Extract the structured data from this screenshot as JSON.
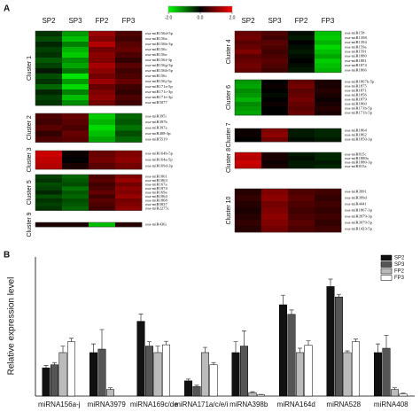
{
  "chart_data": [
    {
      "type": "heatmap",
      "panel": "A",
      "columns": [
        "SP2",
        "SP3",
        "FP2",
        "FP3"
      ],
      "clim": [
        -2,
        2
      ],
      "cticks": [
        {
          "value": -2,
          "label": "-2.0"
        },
        {
          "value": 0,
          "label": "0.0"
        },
        {
          "value": 2,
          "label": "2.0"
        }
      ],
      "clusters": [
        {
          "name": "Cluster 1",
          "rows": [
            "osa-miR156d-5p",
            "osa-miR156a",
            "osa-miR156b-3p",
            "osa-miR156c",
            "osa-miR156e",
            "osa-miR156f-3p",
            "osa-miR156g-3p",
            "osa-miR156h-5p",
            "osa-miR156i",
            "osa-miR156j-5p",
            "osa-miR171a-5p",
            "osa-miR171c-3p",
            "osa-miR171e-3p",
            "osa-miR5077"
          ],
          "values": [
            [
              -0.4,
              -1.2,
              1.2,
              0.6
            ],
            [
              -0.6,
              -1.5,
              1.0,
              0.5
            ],
            [
              -0.3,
              -1.0,
              1.4,
              0.7
            ],
            [
              -0.5,
              -1.4,
              0.9,
              0.8
            ],
            [
              -0.4,
              -1.6,
              1.1,
              0.6
            ],
            [
              -0.7,
              -1.1,
              1.0,
              0.4
            ],
            [
              -0.5,
              -1.3,
              1.3,
              0.7
            ],
            [
              -0.2,
              -0.9,
              1.1,
              0.5
            ],
            [
              -0.6,
              -1.8,
              0.9,
              0.6
            ],
            [
              -0.4,
              -1.2,
              1.2,
              0.8
            ],
            [
              -0.8,
              -1.7,
              0.8,
              0.5
            ],
            [
              -0.3,
              -1.0,
              1.0,
              0.4
            ],
            [
              -0.5,
              -1.5,
              1.1,
              0.6
            ],
            [
              -0.4,
              -1.1,
              0.9,
              0.5
            ]
          ]
        },
        {
          "name": "Cluster 2",
          "rows": [
            "osa-miR395i",
            "osa-miR397b",
            "osa-miR397a",
            "osa-miR408-3p",
            "osa-miR5519"
          ],
          "values": [
            [
              0.6,
              0.8,
              -1.6,
              -0.8
            ],
            [
              0.5,
              0.7,
              -1.4,
              -0.7
            ],
            [
              0.7,
              0.6,
              -1.7,
              -0.9
            ],
            [
              0.4,
              0.8,
              -1.5,
              -0.6
            ],
            [
              0.6,
              0.7,
              -1.3,
              -0.8
            ]
          ]
        },
        {
          "name": "Cluster 3",
          "rows": [
            "osa-miR164b-5p",
            "osa-miR164a-5p",
            "osa-miR169d-3p"
          ],
          "values": [
            [
              1.6,
              0.1,
              0.8,
              1.0
            ],
            [
              1.5,
              0.0,
              0.9,
              1.1
            ],
            [
              1.4,
              0.2,
              0.7,
              0.9
            ]
          ]
        },
        {
          "name": "Cluster 5",
          "rows": [
            "osa-miR1861",
            "osa-miR1863",
            "osa-miR167a",
            "osa-miR1874",
            "osa-miR169a",
            "osa-miR1864",
            "osa-miR1868",
            "osa-miR5837",
            "osa-miR2275c"
          ],
          "values": [
            [
              -0.5,
              -0.8,
              0.6,
              1.0
            ],
            [
              -0.4,
              -0.7,
              0.7,
              1.2
            ],
            [
              -0.6,
              -0.6,
              0.5,
              0.9
            ],
            [
              -0.5,
              -0.9,
              0.6,
              1.1
            ],
            [
              -0.3,
              -0.7,
              0.8,
              1.0
            ],
            [
              -0.6,
              -0.8,
              0.5,
              1.2
            ],
            [
              -0.4,
              -0.6,
              0.7,
              0.9
            ],
            [
              -0.5,
              -0.7,
              0.6,
              1.0
            ],
            [
              -0.4,
              -0.8,
              0.5,
              1.1
            ]
          ]
        },
        {
          "name": "Cluster 9",
          "rows": [
            "osa-miR436i"
          ],
          "values": [
            [
              0.2,
              0.2,
              -1.5,
              0.3
            ]
          ]
        },
        {
          "name": "Cluster 4",
          "rows": [
            "osa-miR158",
            "osa-miR1398",
            "osa-miR1394",
            "osa-miR159a",
            "osa-miR159f",
            "osa-miR1880",
            "osa-miR1881",
            "osa-miR1874",
            "osa-miR1866"
          ],
          "values": [
            [
              0.8,
              0.6,
              -0.1,
              -1.5
            ],
            [
              0.9,
              0.5,
              -0.2,
              -1.6
            ],
            [
              0.7,
              0.7,
              0.0,
              -1.4
            ],
            [
              0.8,
              0.6,
              -0.1,
              -1.7
            ],
            [
              1.0,
              0.5,
              -0.2,
              -1.5
            ],
            [
              0.7,
              0.6,
              -0.1,
              -1.3
            ],
            [
              0.8,
              0.7,
              0.0,
              -1.6
            ],
            [
              0.9,
              0.6,
              -0.1,
              -1.5
            ],
            [
              0.8,
              0.5,
              -0.2,
              -1.4
            ]
          ]
        },
        {
          "name": "Cluster 6",
          "rows": [
            "osa-miR1867b-5p",
            "osa-miR1875",
            "osa-miR1871",
            "osa-miR1856",
            "osa-miR1879",
            "osa-miR1860",
            "osa-miR171b-5p",
            "osa-miR171h-5p"
          ],
          "values": [
            [
              -1.2,
              0.0,
              0.8,
              0.2
            ],
            [
              -1.3,
              0.1,
              0.9,
              0.2
            ],
            [
              -1.1,
              0.0,
              0.7,
              0.3
            ],
            [
              -1.2,
              -0.1,
              0.8,
              0.2
            ],
            [
              -1.4,
              0.0,
              0.9,
              0.1
            ],
            [
              -1.1,
              0.1,
              0.8,
              0.2
            ],
            [
              -1.2,
              0.0,
              0.7,
              0.3
            ],
            [
              -1.3,
              0.0,
              0.8,
              0.2
            ]
          ]
        },
        {
          "name": "Cluster 7",
          "rows": [
            "osa-miR1864",
            "osa-miR1862",
            "osa-miR1850-3p"
          ],
          "values": [
            [
              0.1,
              1.0,
              -0.2,
              -0.3
            ],
            [
              0.1,
              1.1,
              -0.2,
              -0.3
            ],
            [
              0.0,
              0.9,
              -0.1,
              -0.2
            ]
          ]
        },
        {
          "name": "Cluster 8",
          "rows": [
            "osa-miR815c",
            "osa-miR1880a",
            "osa-miR1880-3p",
            "osa-miR815a"
          ],
          "values": [
            [
              1.5,
              0.2,
              -0.2,
              -0.3
            ],
            [
              1.4,
              0.2,
              -0.1,
              -0.3
            ],
            [
              1.6,
              0.1,
              -0.2,
              -0.2
            ],
            [
              1.5,
              0.2,
              -0.2,
              -0.3
            ]
          ]
        },
        {
          "name": "Cluster 10",
          "rows": [
            "osa-miR3991",
            "osa-miR399d",
            "osa-miR444f",
            "osa-miR1867-3p",
            "osa-miR3979-3p",
            "osa-miR3979-5p",
            "osa-miR1423-5p"
          ],
          "values": [
            [
              0.3,
              1.0,
              0.6,
              0.5
            ],
            [
              0.4,
              1.1,
              0.7,
              0.4
            ],
            [
              0.3,
              0.9,
              0.6,
              0.5
            ],
            [
              0.2,
              1.0,
              0.5,
              0.4
            ],
            [
              0.3,
              1.1,
              0.6,
              0.5
            ],
            [
              0.4,
              1.0,
              0.7,
              0.4
            ],
            [
              0.3,
              0.9,
              0.6,
              0.5
            ]
          ]
        }
      ]
    },
    {
      "type": "bar",
      "panel": "B",
      "ylabel": "Relative expression level",
      "categories": [
        "miRNA156a-j",
        "miRNA3979",
        "miRNA169c/de",
        "miRNA171a/c/e/i",
        "miRNA398b",
        "miRNA164d",
        "miRNA528",
        "miRNA408"
      ],
      "ylim": [
        0,
        3.2
      ],
      "series": [
        {
          "name": "SP2",
          "color": "#111111",
          "values": [
            0.65,
            1.0,
            1.72,
            0.35,
            1.0,
            2.1,
            2.52,
            1.0
          ],
          "errors": [
            0.05,
            0.2,
            0.17,
            0.04,
            0.25,
            0.22,
            0.17,
            0.2
          ]
        },
        {
          "name": "SP3",
          "color": "#555555",
          "values": [
            0.72,
            1.08,
            1.15,
            0.22,
            1.15,
            1.88,
            2.28,
            1.1
          ],
          "errors": [
            0.05,
            0.45,
            0.1,
            0.03,
            0.35,
            0.1,
            0.06,
            0.3
          ]
        },
        {
          "name": "FP2",
          "color": "#bbbbbb",
          "values": [
            1.0,
            0.15,
            1.0,
            1.0,
            0.08,
            1.0,
            1.0,
            0.15
          ],
          "errors": [
            0.15,
            0.04,
            0.15,
            0.12,
            0.02,
            0.1,
            0.04,
            0.04
          ]
        },
        {
          "name": "FP3",
          "color": "#ffffff",
          "values": [
            1.25,
            0,
            1.18,
            0.72,
            0.03,
            1.17,
            1.25,
            0.05
          ],
          "errors": [
            0.08,
            0,
            0.08,
            0.05,
            0.01,
            0.1,
            0.06,
            0.02
          ]
        }
      ]
    }
  ]
}
